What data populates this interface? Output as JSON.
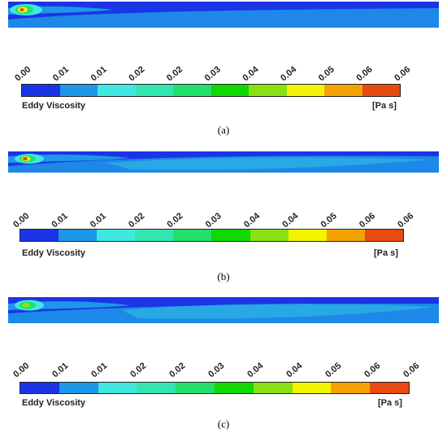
{
  "colors": [
    "#1a35e6",
    "#1f96e8",
    "#3fe8e0",
    "#33e6b0",
    "#22e06a",
    "#10d800",
    "#8ae010",
    "#f4f400",
    "#f3a200",
    "#e84a10"
  ],
  "panels": [
    {
      "caption": "(a)",
      "quantity": "Eddy Viscosity",
      "unit": "[Pa s]",
      "tick_labels": [
        "0.00",
        "0.01",
        "0.01",
        "0.02",
        "0.02",
        "0.03",
        "0.04",
        "0.04",
        "0.05",
        "0.06",
        "0.06"
      ]
    },
    {
      "caption": "(b)",
      "quantity": "Eddy Viscosity",
      "unit": "[Pa s]",
      "tick_labels": [
        "0.00",
        "0.01",
        "0.01",
        "0.02",
        "0.02",
        "0.03",
        "0.04",
        "0.04",
        "0.05",
        "0.06",
        "0.06"
      ]
    },
    {
      "caption": "(c)",
      "quantity": "Eddy Viscosity",
      "unit": "[Pa s]",
      "tick_labels": [
        "0.00",
        "0.01",
        "0.01",
        "0.02",
        "0.02",
        "0.03",
        "0.04",
        "0.04",
        "0.05",
        "0.06",
        "0.06"
      ]
    }
  ]
}
